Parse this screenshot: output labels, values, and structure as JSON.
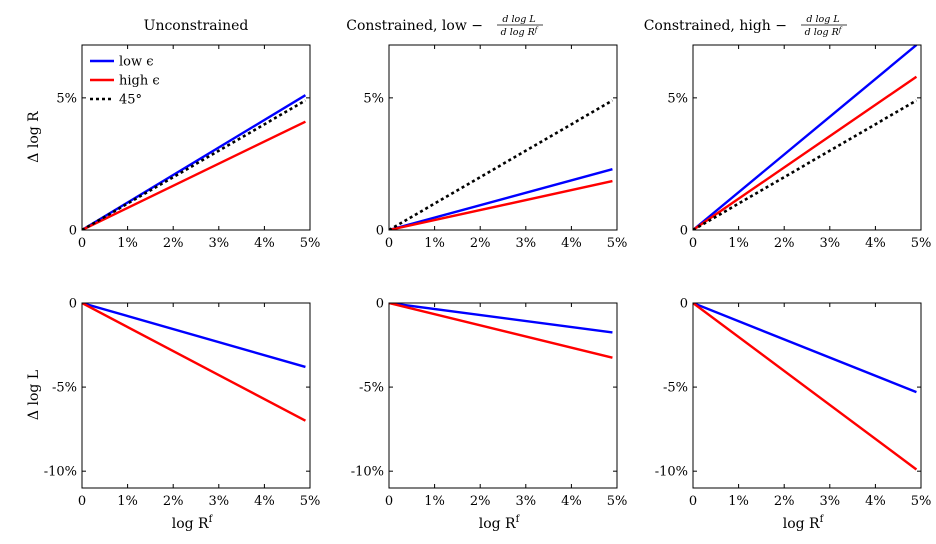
{
  "figure": {
    "xlabel": "log R",
    "xlabel_sup": "f",
    "ylabel_top": "Δ log R",
    "ylabel_bottom": "Δ log L",
    "titles": [
      {
        "text": "Unconstrained",
        "frac": null
      },
      {
        "text": "Constrained, low −",
        "frac": {
          "num": "d log L",
          "den": "d log R",
          "den_sup": "f"
        }
      },
      {
        "text": "Constrained, high −",
        "frac": {
          "num": "d log L",
          "den": "d log R",
          "den_sup": "f"
        }
      }
    ],
    "legend": [
      {
        "label": "low ϵ",
        "color": "#0000ff",
        "dash": "solid"
      },
      {
        "label": "high ϵ",
        "color": "#ff0000",
        "dash": "solid"
      },
      {
        "label": "45°",
        "color": "#000000",
        "dash": "dotted"
      }
    ]
  },
  "chart_data": [
    {
      "type": "line",
      "panel": "top-left",
      "title": "Unconstrained",
      "xlabel": "log R^f",
      "ylabel": "Δ log R",
      "x": [
        0,
        4.9
      ],
      "xlim": [
        0,
        5
      ],
      "ylim": [
        0,
        7
      ],
      "xticks": [
        0,
        1,
        2,
        3,
        4,
        5
      ],
      "xtick_labels": [
        "0",
        "1%",
        "2%",
        "3%",
        "4%",
        "5%"
      ],
      "yticks": [
        0,
        5
      ],
      "ytick_labels": [
        "0",
        "5%"
      ],
      "legend_position": "top-left",
      "series": [
        {
          "name": "low ϵ",
          "color": "#0000ff",
          "dash": "solid",
          "values": [
            0,
            5.1
          ]
        },
        {
          "name": "high ϵ",
          "color": "#ff0000",
          "dash": "solid",
          "values": [
            0,
            4.1
          ]
        },
        {
          "name": "45°",
          "color": "#000000",
          "dash": "dotted",
          "values": [
            0,
            4.9
          ]
        }
      ]
    },
    {
      "type": "line",
      "panel": "top-middle",
      "title": "Constrained, low −d log L / d log R^f",
      "x": [
        0,
        4.9
      ],
      "xlim": [
        0,
        5
      ],
      "ylim": [
        0,
        7
      ],
      "xticks": [
        0,
        1,
        2,
        3,
        4,
        5
      ],
      "xtick_labels": [
        "0",
        "1%",
        "2%",
        "3%",
        "4%",
        "5%"
      ],
      "yticks": [
        0,
        5
      ],
      "ytick_labels": [
        "0",
        "5%"
      ],
      "series": [
        {
          "name": "low ϵ",
          "color": "#0000ff",
          "dash": "solid",
          "values": [
            0,
            2.3
          ]
        },
        {
          "name": "high ϵ",
          "color": "#ff0000",
          "dash": "solid",
          "values": [
            0,
            1.85
          ]
        },
        {
          "name": "45°",
          "color": "#000000",
          "dash": "dotted",
          "values": [
            0,
            4.9
          ]
        }
      ]
    },
    {
      "type": "line",
      "panel": "top-right",
      "title": "Constrained, high −d log L / d log R^f",
      "x": [
        0,
        4.9
      ],
      "xlim": [
        0,
        5
      ],
      "ylim": [
        0,
        7
      ],
      "xticks": [
        0,
        1,
        2,
        3,
        4,
        5
      ],
      "xtick_labels": [
        "0",
        "1%",
        "2%",
        "3%",
        "4%",
        "5%"
      ],
      "yticks": [
        0,
        5
      ],
      "ytick_labels": [
        "0",
        "5%"
      ],
      "series": [
        {
          "name": "low ϵ",
          "color": "#0000ff",
          "dash": "solid",
          "values": [
            0,
            7.0
          ]
        },
        {
          "name": "high ϵ",
          "color": "#ff0000",
          "dash": "solid",
          "values": [
            0,
            5.8
          ]
        },
        {
          "name": "45°",
          "color": "#000000",
          "dash": "dotted",
          "values": [
            0,
            4.9
          ]
        }
      ]
    },
    {
      "type": "line",
      "panel": "bottom-left",
      "xlabel": "log R^f",
      "ylabel": "Δ log L",
      "x": [
        0,
        4.9
      ],
      "xlim": [
        0,
        5
      ],
      "ylim": [
        -11,
        0
      ],
      "xticks": [
        0,
        1,
        2,
        3,
        4,
        5
      ],
      "xtick_labels": [
        "0",
        "1%",
        "2%",
        "3%",
        "4%",
        "5%"
      ],
      "yticks": [
        0,
        -5,
        -10
      ],
      "ytick_labels": [
        "0",
        "-5%",
        "-10%"
      ],
      "series": [
        {
          "name": "low ϵ",
          "color": "#0000ff",
          "dash": "solid",
          "values": [
            0,
            -3.8
          ]
        },
        {
          "name": "high ϵ",
          "color": "#ff0000",
          "dash": "solid",
          "values": [
            0,
            -7.0
          ]
        }
      ]
    },
    {
      "type": "line",
      "panel": "bottom-middle",
      "xlabel": "log R^f",
      "x": [
        0,
        4.9
      ],
      "xlim": [
        0,
        5
      ],
      "ylim": [
        -11,
        0
      ],
      "xticks": [
        0,
        1,
        2,
        3,
        4,
        5
      ],
      "xtick_labels": [
        "0",
        "1%",
        "2%",
        "3%",
        "4%",
        "5%"
      ],
      "yticks": [
        0,
        -5,
        -10
      ],
      "ytick_labels": [
        "0",
        "-5%",
        "-10%"
      ],
      "series": [
        {
          "name": "low ϵ",
          "color": "#0000ff",
          "dash": "solid",
          "values": [
            0,
            -1.75
          ]
        },
        {
          "name": "high ϵ",
          "color": "#ff0000",
          "dash": "solid",
          "values": [
            0,
            -3.25
          ]
        }
      ]
    },
    {
      "type": "line",
      "panel": "bottom-right",
      "xlabel": "log R^f",
      "x": [
        0,
        4.9
      ],
      "xlim": [
        0,
        5
      ],
      "ylim": [
        -11,
        0
      ],
      "xticks": [
        0,
        1,
        2,
        3,
        4,
        5
      ],
      "xtick_labels": [
        "0",
        "1%",
        "2%",
        "3%",
        "4%",
        "5%"
      ],
      "yticks": [
        0,
        -5,
        -10
      ],
      "ytick_labels": [
        "0",
        "-5%",
        "-10%"
      ],
      "series": [
        {
          "name": "low ϵ",
          "color": "#0000ff",
          "dash": "solid",
          "values": [
            0,
            -5.3
          ]
        },
        {
          "name": "high ϵ",
          "color": "#ff0000",
          "dash": "solid",
          "values": [
            0,
            -9.9
          ]
        }
      ]
    }
  ]
}
